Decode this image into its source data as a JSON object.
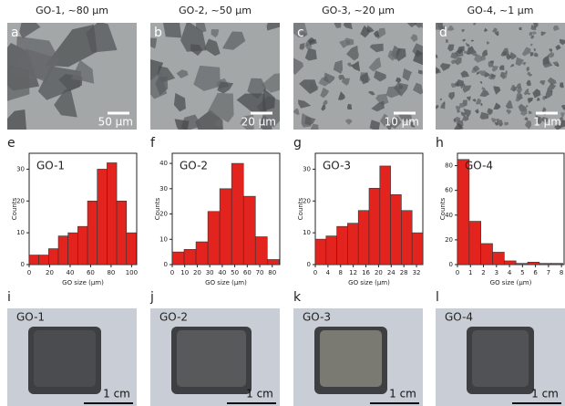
{
  "micrographs": [
    {
      "letter": "a",
      "title": "GO-1, ~80 μm",
      "scale": "50 μm"
    },
    {
      "letter": "b",
      "title": "GO-2, ~50 μm",
      "scale": "20 μm"
    },
    {
      "letter": "c",
      "title": "GO-3, ~20 μm",
      "scale": "10 μm"
    },
    {
      "letter": "d",
      "title": "GO-4, ~1 μm",
      "scale": "1 μm"
    }
  ],
  "chart_data": [
    {
      "type": "histogram",
      "panel": "e",
      "title": "GO-1",
      "xlabel": "GO size (μm)",
      "ylabel": "Counts",
      "color": "#e3231e",
      "bins": [
        0,
        9.5,
        19,
        28.5,
        38,
        47.5,
        57,
        66.5,
        76,
        85.5,
        95,
        104.5
      ],
      "values": [
        3,
        3,
        5,
        9,
        10,
        12,
        20,
        30,
        32,
        20,
        10
      ],
      "xlim": [
        0,
        105
      ],
      "xticks": [
        0,
        20,
        40,
        60,
        80,
        100
      ],
      "ylim": [
        0,
        35
      ],
      "yticks": [
        0,
        10,
        20,
        30
      ]
    },
    {
      "type": "histogram",
      "panel": "f",
      "title": "GO-2",
      "xlabel": "GO size (μm)",
      "ylabel": "Counts",
      "color": "#e3231e",
      "bins": [
        0,
        9.5,
        19,
        28.5,
        38,
        47.5,
        57,
        66.5,
        76,
        85.5
      ],
      "values": [
        5,
        6,
        9,
        21,
        30,
        40,
        27,
        11,
        2
      ],
      "xlim": [
        0,
        86
      ],
      "xticks": [
        0,
        10,
        20,
        30,
        40,
        50,
        60,
        70,
        80
      ],
      "ylim": [
        0,
        44
      ],
      "yticks": [
        0,
        10,
        20,
        30,
        40
      ]
    },
    {
      "type": "histogram",
      "panel": "g",
      "title": "GO-3",
      "xlabel": "GO size (μm)",
      "ylabel": "Counts",
      "color": "#e3231e",
      "bins": [
        0,
        3.4,
        6.8,
        10.2,
        13.6,
        17,
        20.4,
        23.8,
        27.2,
        30.6,
        34
      ],
      "values": [
        8,
        9,
        12,
        13,
        17,
        24,
        31,
        22,
        17,
        10
      ],
      "xlim": [
        0,
        34
      ],
      "xticks": [
        0,
        4,
        8,
        12,
        16,
        20,
        24,
        28,
        32
      ],
      "ylim": [
        0,
        35
      ],
      "yticks": [
        0,
        10,
        20,
        30
      ]
    },
    {
      "type": "histogram",
      "panel": "h",
      "title": "GO-4",
      "xlabel": "GO size (μm)",
      "ylabel": "Counts",
      "color": "#e3231e",
      "bins": [
        0,
        0.9,
        1.8,
        2.7,
        3.6,
        4.5,
        5.4,
        6.3,
        7.2,
        8.1
      ],
      "values": [
        85,
        35,
        17,
        10,
        3,
        1,
        2,
        1,
        1
      ],
      "xlim": [
        0,
        8.2
      ],
      "xticks": [
        0,
        1,
        2,
        3,
        4,
        5,
        6,
        7,
        8
      ],
      "ylim": [
        0,
        90
      ],
      "yticks": [
        0,
        20,
        40,
        60,
        80
      ]
    }
  ],
  "photos": [
    {
      "letter": "i",
      "label": "GO-1",
      "scale": "1 cm"
    },
    {
      "letter": "j",
      "label": "GO-2",
      "scale": "1 cm"
    },
    {
      "letter": "k",
      "label": "GO-3",
      "scale": "1 cm"
    },
    {
      "letter": "l",
      "label": "GO-4",
      "scale": "1 cm"
    }
  ]
}
